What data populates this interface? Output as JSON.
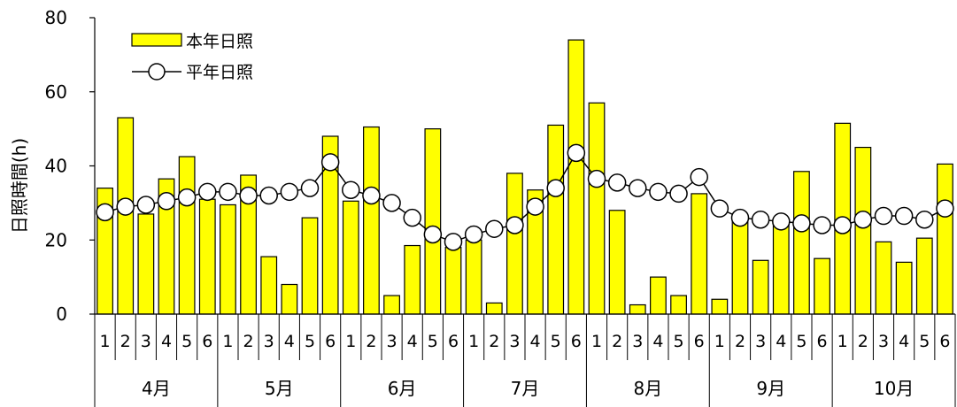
{
  "chart_data": {
    "type": "bar",
    "ylabel": "日照時間(h)",
    "ylim": [
      0,
      80
    ],
    "yticks": [
      0,
      20,
      40,
      60,
      80
    ],
    "grid": false,
    "legend_position": "top-left",
    "months": [
      "4月",
      "5月",
      "6月",
      "7月",
      "8月",
      "9月",
      "10月"
    ],
    "periods": [
      "1",
      "2",
      "3",
      "4",
      "5",
      "6"
    ],
    "series": [
      {
        "name": "本年日照",
        "type": "bar",
        "color": "#ffff00",
        "values": [
          34,
          53,
          27,
          36.5,
          42.5,
          31,
          29.5,
          37.5,
          15.5,
          8,
          26,
          48,
          30.5,
          50.5,
          5,
          18.5,
          50,
          18,
          20,
          3,
          38,
          33.5,
          51,
          74,
          57,
          28,
          2.5,
          10,
          5,
          32.5,
          4,
          25,
          14.5,
          25,
          38.5,
          15,
          51.5,
          45,
          19.5,
          14,
          20.5,
          40.5
        ]
      },
      {
        "name": "平年日照",
        "type": "line",
        "color": "#000000",
        "marker_fill": "#ffffff",
        "values": [
          27.5,
          29,
          29.5,
          30.5,
          31.5,
          33,
          33,
          32,
          32,
          33,
          34,
          41,
          33.5,
          32,
          30,
          26,
          21.5,
          19.5,
          21.5,
          23,
          24,
          29,
          34,
          43.5,
          36.5,
          35.5,
          34,
          33,
          32.5,
          37,
          28.5,
          26,
          25.5,
          25,
          24.5,
          24,
          24,
          25.5,
          26.5,
          26.5,
          25.5,
          28.5
        ]
      }
    ]
  }
}
